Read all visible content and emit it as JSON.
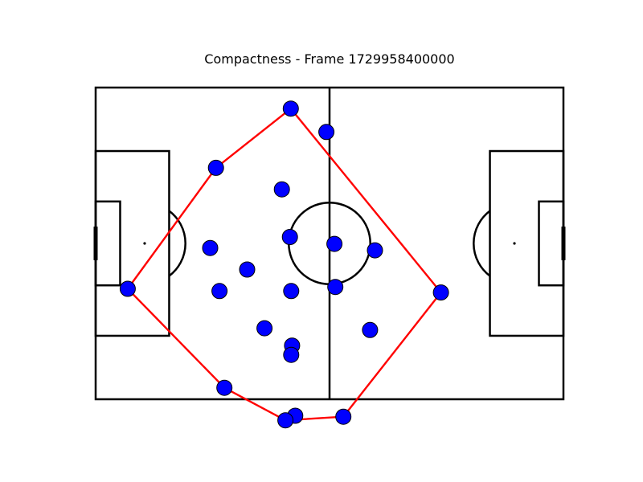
{
  "chart_data": {
    "type": "scatter",
    "title": "Compactness - Frame 1729958400000",
    "xlim": [
      -52.5,
      52.5
    ],
    "ylim": [
      -34,
      34
    ],
    "grid": false,
    "colors": {
      "player_fill": "#0000ff",
      "player_edge": "#000000",
      "hull_line": "#ff0000",
      "pitch_line": "#000000"
    },
    "players": [
      {
        "x": -8.7,
        "y": 29.4
      },
      {
        "x": -0.7,
        "y": 24.3
      },
      {
        "x": -25.5,
        "y": 16.5
      },
      {
        "x": -10.7,
        "y": 11.8
      },
      {
        "x": -26.8,
        "y": -1.0
      },
      {
        "x": -8.9,
        "y": 1.4
      },
      {
        "x": 1.1,
        "y": -0.1
      },
      {
        "x": 10.2,
        "y": -1.5
      },
      {
        "x": -18.5,
        "y": -5.7
      },
      {
        "x": -24.7,
        "y": -10.4
      },
      {
        "x": -8.6,
        "y": -10.4
      },
      {
        "x": 1.3,
        "y": -9.5
      },
      {
        "x": 25.0,
        "y": -10.7
      },
      {
        "x": -45.3,
        "y": -9.9
      },
      {
        "x": -14.6,
        "y": -18.5
      },
      {
        "x": 9.1,
        "y": -18.9
      },
      {
        "x": -8.4,
        "y": -22.3
      },
      {
        "x": -8.6,
        "y": -24.3
      },
      {
        "x": -23.6,
        "y": -31.5
      },
      {
        "x": -7.7,
        "y": -37.6
      },
      {
        "x": -9.9,
        "y": -38.6
      },
      {
        "x": 3.1,
        "y": -37.8
      }
    ],
    "hull": [
      {
        "x": -8.7,
        "y": 29.4
      },
      {
        "x": 25.0,
        "y": -10.7
      },
      {
        "x": 3.1,
        "y": -37.8
      },
      {
        "x": -9.9,
        "y": -38.6
      },
      {
        "x": -23.6,
        "y": -31.5
      },
      {
        "x": -45.3,
        "y": -9.9
      },
      {
        "x": -25.5,
        "y": 16.5
      },
      {
        "x": -8.7,
        "y": 29.4
      }
    ]
  }
}
